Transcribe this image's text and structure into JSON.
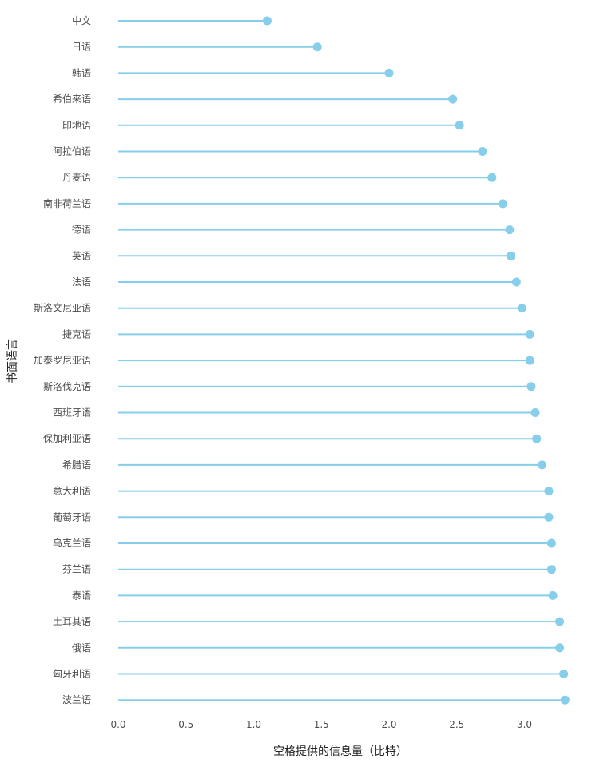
{
  "colors": {
    "accent": "#87CEEB",
    "background": "#ffffff",
    "text": "#4d4d4d"
  },
  "chart_data": {
    "type": "lollipop",
    "xlabel": "空格提供的信息量（比特）",
    "ylabel": "书面语言",
    "xlim": [
      0,
      3.35
    ],
    "x_ticks": [
      "0.0",
      "0.5",
      "1.0",
      "1.5",
      "2.0",
      "2.5",
      "3.0"
    ],
    "grid": false,
    "categories": [
      "中文",
      "日语",
      "韩语",
      "希伯来语",
      "印地语",
      "阿拉伯语",
      "丹麦语",
      "南非荷兰语",
      "德语",
      "英语",
      "法语",
      "斯洛文尼亚语",
      "捷克语",
      "加泰罗尼亚语",
      "斯洛伐克语",
      "西班牙语",
      "保加利亚语",
      "希腊语",
      "意大利语",
      "葡萄牙语",
      "乌克兰语",
      "芬兰语",
      "泰语",
      "土耳其语",
      "俄语",
      "匈牙利语",
      "波兰语"
    ],
    "values": [
      1.1,
      1.47,
      2.0,
      2.47,
      2.52,
      2.69,
      2.76,
      2.84,
      2.89,
      2.9,
      2.94,
      2.98,
      3.04,
      3.04,
      3.05,
      3.08,
      3.09,
      3.13,
      3.18,
      3.18,
      3.2,
      3.2,
      3.21,
      3.26,
      3.26,
      3.29,
      3.3
    ]
  }
}
